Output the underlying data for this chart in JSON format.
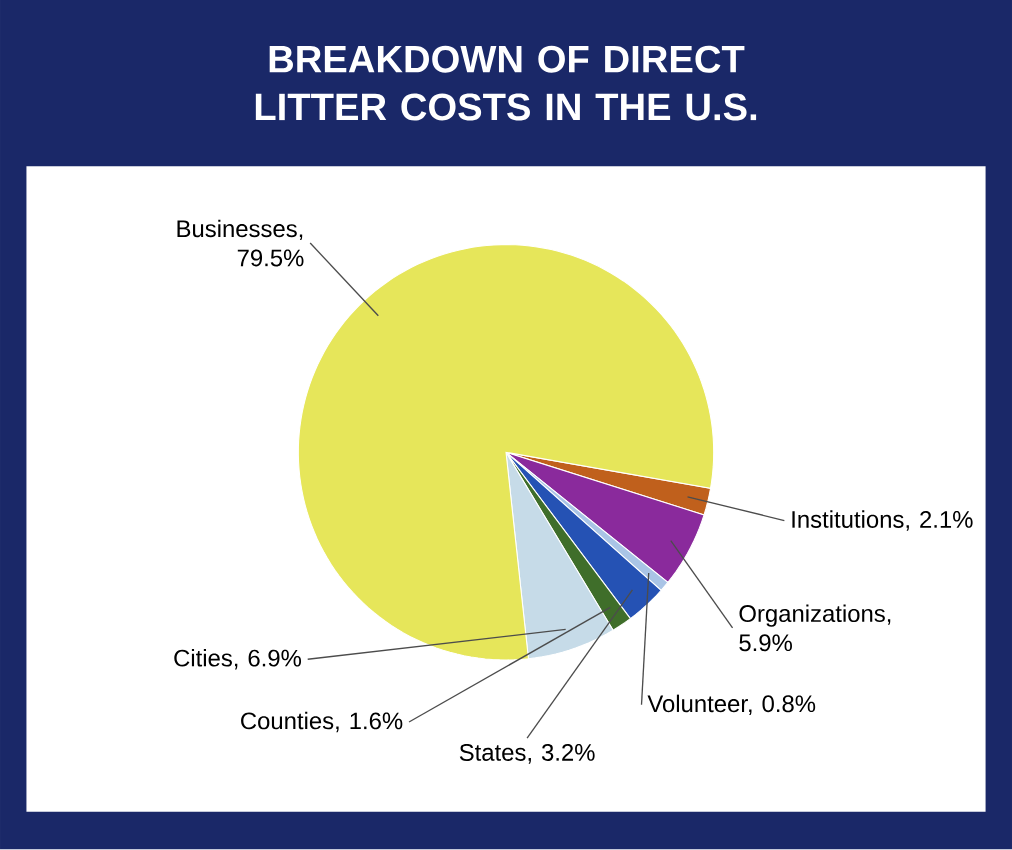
{
  "chart_data": {
    "type": "pie",
    "title": "BREAKDOWN OF DIRECT LITTER COSTS IN THE U.S.",
    "categories": [
      "Institutions, 2.1%",
      "Organizations, 5.9%",
      "Volunteer, 0.8%",
      "States, 3.2%",
      "Counties, 1.6%",
      "Cities, 6.9%",
      "Businesses, 79.5%"
    ],
    "values": [
      2.1,
      5.9,
      0.8,
      3.2,
      1.6,
      6.9,
      79.5
    ],
    "colors": [
      "#c0601c",
      "#8a2a9c",
      "#a9c4e6",
      "#2552b4",
      "#3f6e2a",
      "#c6dbe8",
      "#e6e65a"
    ]
  }
}
